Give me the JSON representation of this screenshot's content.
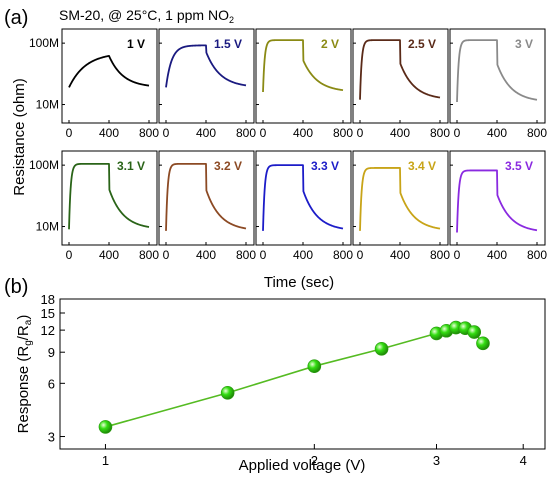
{
  "panel_a": {
    "label": "(a)",
    "title": "SM-20, @ 25°C, 1 ppm NO",
    "title_sub": "2",
    "ylabel": "Resistance (ohm)",
    "xlabel": "Time (sec)"
  },
  "panel_b": {
    "label": "(b)",
    "ylabel_main": "Response (R",
    "ylabel_g": "g",
    "ylabel_mid": "/R",
    "ylabel_a": "a",
    "ylabel_end": ")",
    "xlabel": "Applied voltage (V)"
  },
  "chart_data": [
    {
      "type": "line",
      "title": "SM-20, @ 25°C, 1 ppm NO2",
      "xlabel": "Time (sec)",
      "ylabel": "Resistance (ohm)",
      "y_scale": "log",
      "x_ticks": [
        0,
        400,
        800
      ],
      "y_ticks": [
        {
          "value": 100000000,
          "label": "100M"
        },
        {
          "value": 10000000,
          "label": "10M"
        }
      ],
      "xlim": [
        -70,
        880
      ],
      "ylim": [
        5000000,
        170000000
      ],
      "grid": false,
      "panels": [
        {
          "label": "1 V",
          "color": "#000000",
          "base": 19000000,
          "peak": 62000000,
          "rise": "slow"
        },
        {
          "label": "1.5 V",
          "color": "#1a1a80",
          "base": 19000000,
          "peak": 92000000,
          "rise": "medium"
        },
        {
          "label": "2 V",
          "color": "#8a8a14",
          "base": 16000000,
          "peak": 112000000,
          "rise": "fast"
        },
        {
          "label": "2.5 V",
          "color": "#5a2a18",
          "base": 12000000,
          "peak": 112000000,
          "rise": "fast"
        },
        {
          "label": "3 V",
          "color": "#8a8a8a",
          "base": 11000000,
          "peak": 112000000,
          "rise": "fast"
        },
        {
          "label": "3.1 V",
          "color": "#2a6418",
          "base": 9000000,
          "peak": 105000000,
          "rise": "fast"
        },
        {
          "label": "3.2 V",
          "color": "#8c4a24",
          "base": 8500000,
          "peak": 105000000,
          "rise": "fast"
        },
        {
          "label": "3.3 V",
          "color": "#1c1cc8",
          "base": 8500000,
          "peak": 100000000,
          "rise": "fast"
        },
        {
          "label": "3.4 V",
          "color": "#c8a418",
          "base": 8500000,
          "peak": 90000000,
          "rise": "fast"
        },
        {
          "label": "3.5 V",
          "color": "#8a2ae0",
          "base": 8000000,
          "peak": 82000000,
          "rise": "fast"
        }
      ]
    },
    {
      "type": "scatter",
      "xlabel": "Applied voltage (V)",
      "ylabel": "Response (Rg/Ra)",
      "x_scale": "log",
      "y_scale": "log",
      "xlim": [
        0.86,
        4.3
      ],
      "ylim": [
        2.55,
        18
      ],
      "x_ticks": [
        1,
        2,
        3,
        4
      ],
      "y_ticks": [
        3,
        6,
        9,
        12,
        15,
        18
      ],
      "grid": false,
      "series": [
        {
          "color": "#33dd11",
          "line_color": "#55bb22",
          "x": [
            1.0,
            1.5,
            2.0,
            2.5,
            3.0,
            3.1,
            3.2,
            3.3,
            3.4,
            3.5
          ],
          "y": [
            3.4,
            5.3,
            7.5,
            9.4,
            11.5,
            11.9,
            12.4,
            12.3,
            11.7,
            10.1
          ]
        }
      ]
    }
  ]
}
